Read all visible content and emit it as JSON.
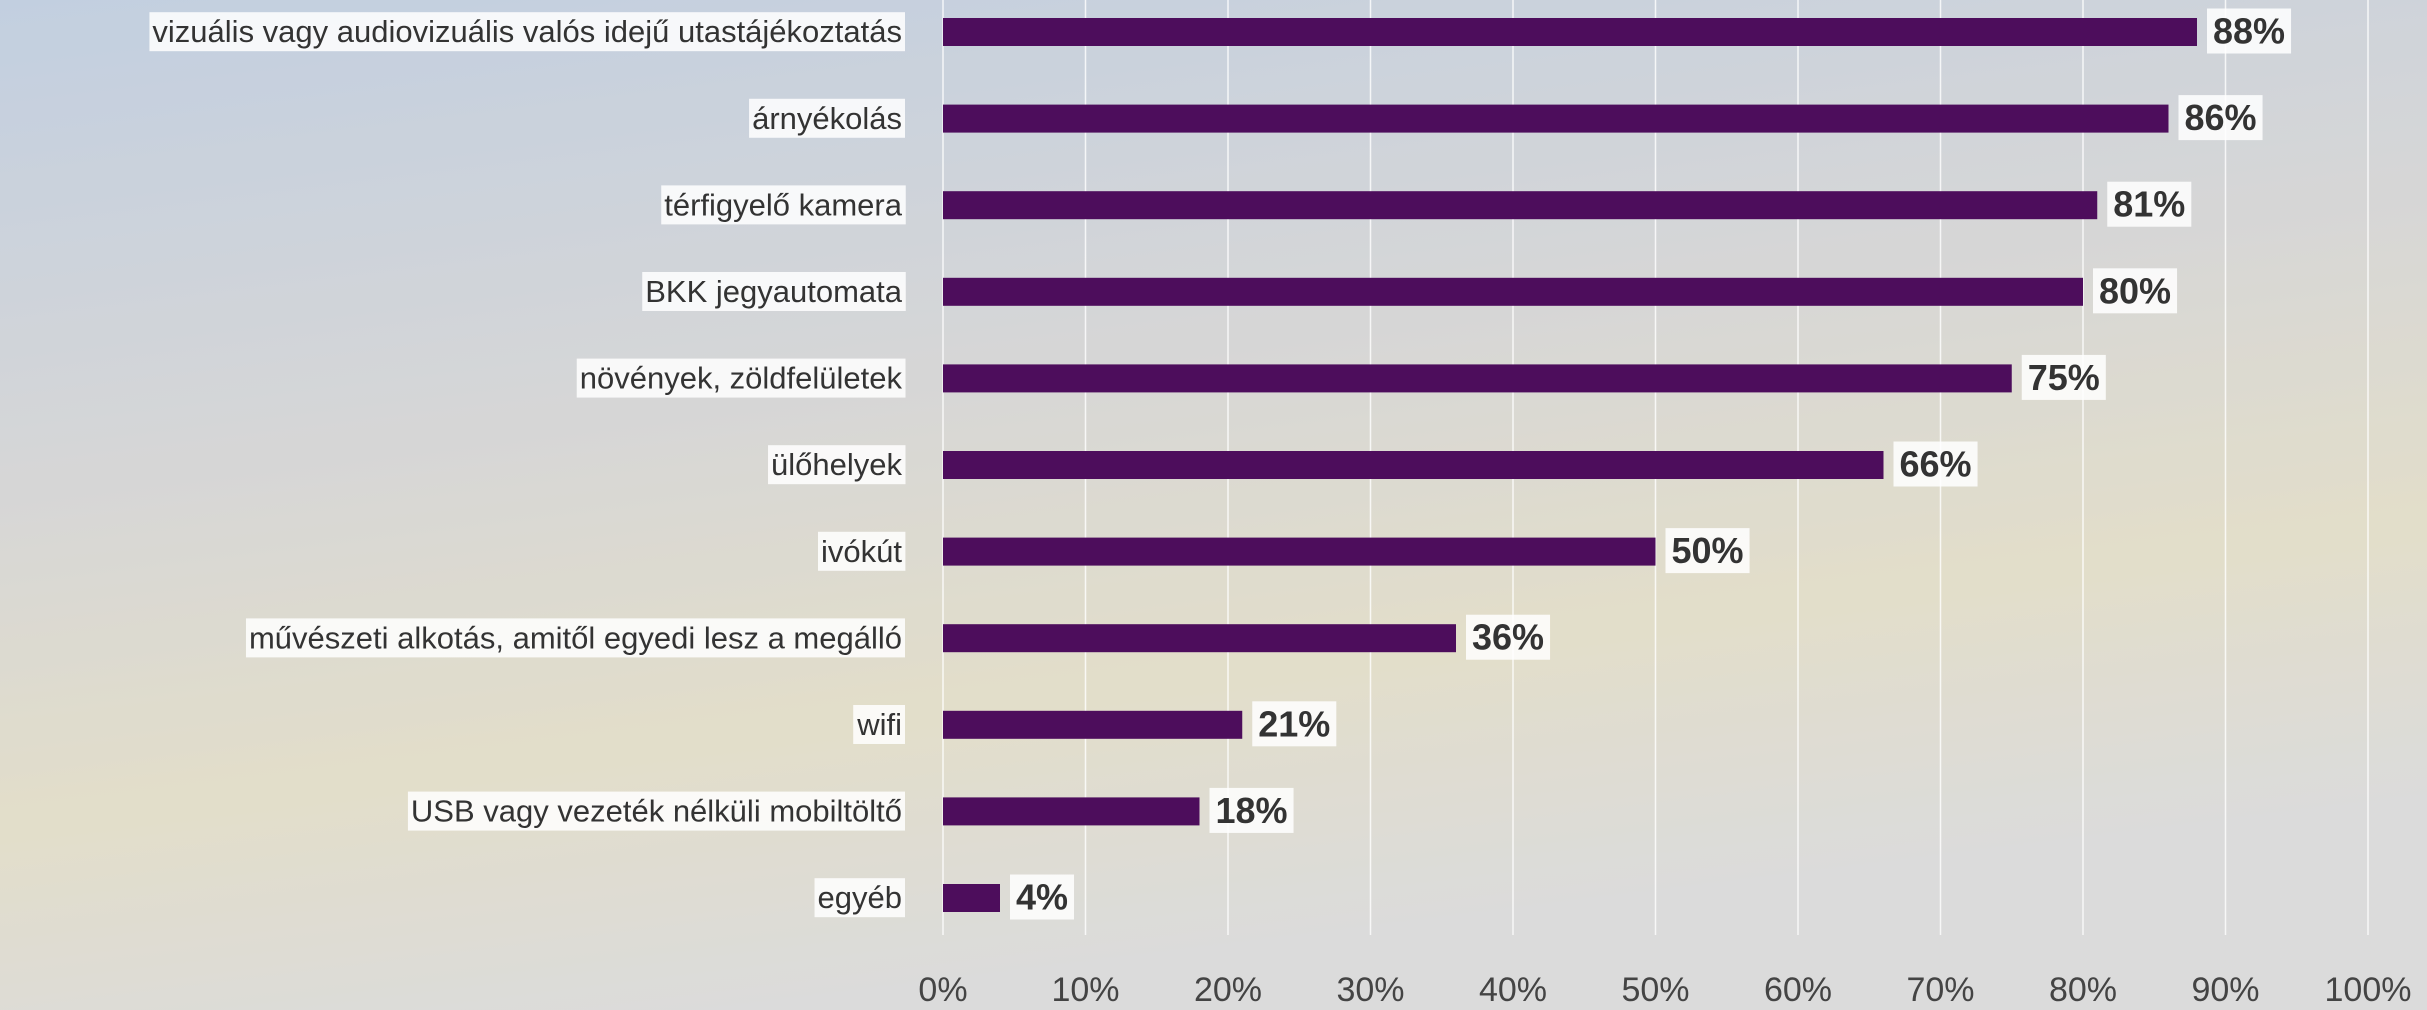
{
  "chart_data": {
    "type": "bar",
    "orientation": "horizontal",
    "categories": [
      "vizuális vagy audiovizuális valós idejű utastájékoztatás",
      "árnyékolás",
      "térfigyelő kamera",
      "BKK jegyautomata",
      "növények, zöldfelületek",
      "ülőhelyek",
      "ivókút",
      "művészeti alkotás, amitől egyedi lesz a megálló",
      "wifi",
      "USB vagy vezeték nélküli mobiltöltő",
      "egyéb"
    ],
    "values": [
      88,
      86,
      81,
      80,
      75,
      66,
      50,
      36,
      21,
      18,
      4
    ],
    "value_labels": [
      "88%",
      "86%",
      "81%",
      "80%",
      "75%",
      "66%",
      "50%",
      "36%",
      "21%",
      "18%",
      "4%"
    ],
    "color": "#4d0d5c",
    "xlim": [
      0,
      100
    ],
    "xticks": [
      {
        "value": 0,
        "label": "0%"
      },
      {
        "value": 10,
        "label": "10%"
      },
      {
        "value": 20,
        "label": "20%"
      },
      {
        "value": 30,
        "label": "30%"
      },
      {
        "value": 40,
        "label": "40%"
      },
      {
        "value": 50,
        "label": "50%"
      },
      {
        "value": 60,
        "label": "60%"
      },
      {
        "value": 70,
        "label": "70%"
      },
      {
        "value": 80,
        "label": "80%"
      },
      {
        "value": 90,
        "label": "90%"
      },
      {
        "value": 100,
        "label": "100%"
      }
    ],
    "grid": true
  }
}
